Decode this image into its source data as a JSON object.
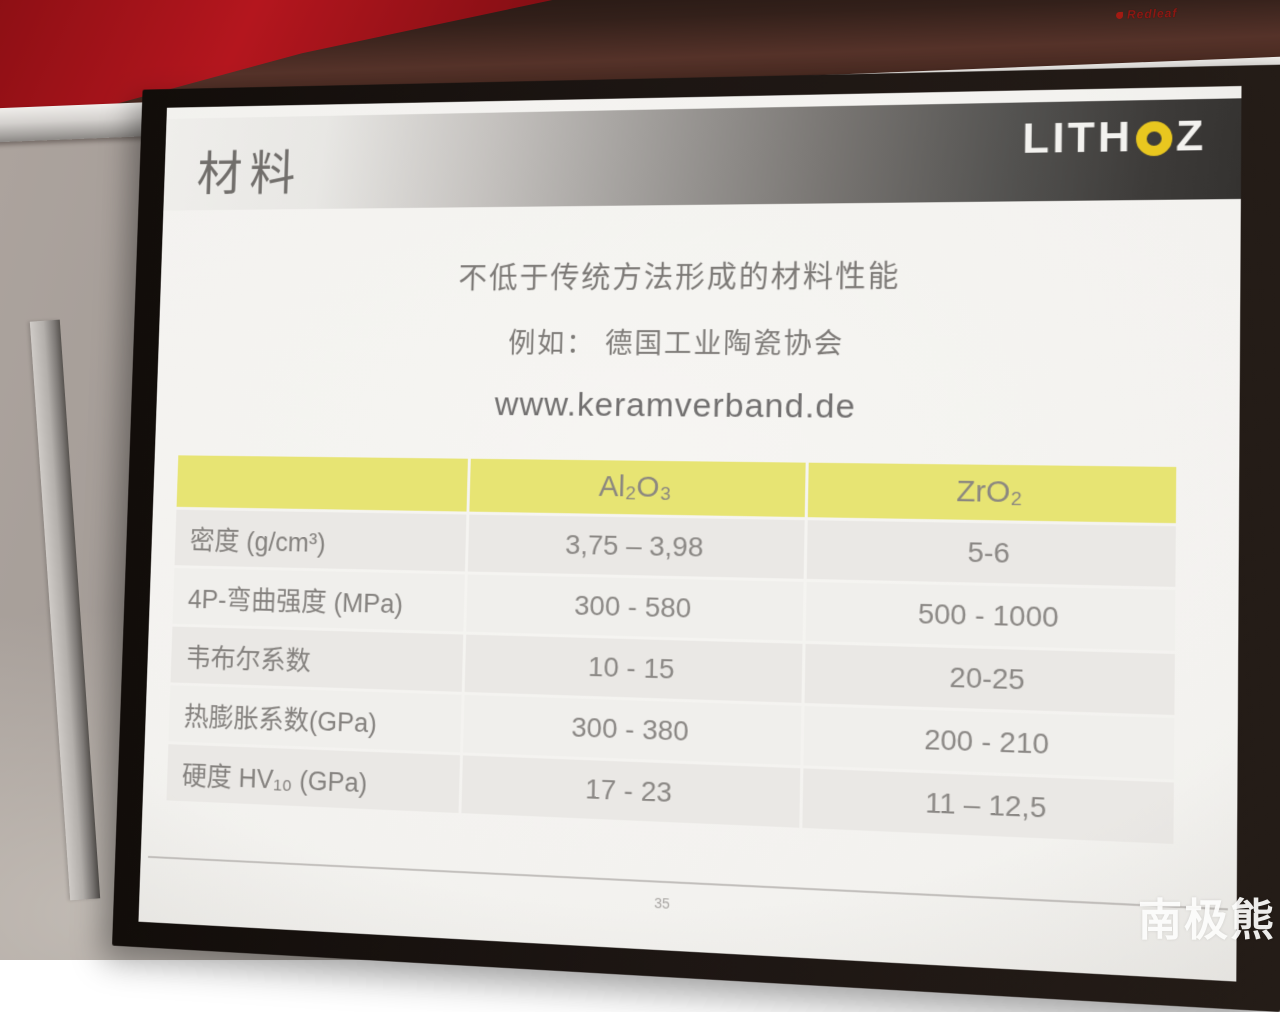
{
  "scene": {
    "projector_brand": "Redleaf",
    "watermark": "南极熊"
  },
  "slide": {
    "brand": {
      "logo_text": "LITHOZ",
      "prefix": "LITH",
      "suffix": "Z"
    },
    "title": "材料",
    "lines": {
      "line1": "不低于传统方法形成的材料性能",
      "line2": "例如： 德国工业陶瓷协会",
      "line3": "www.keramverband.de"
    },
    "table": {
      "headers": [
        "",
        "Al₂O₃",
        "ZrO₂"
      ],
      "rows": [
        {
          "label": "密度 (g/cm³)",
          "al2o3": "3,75 – 3,98",
          "zro2": "5-6"
        },
        {
          "label": "4P-弯曲强度 (MPa)",
          "al2o3": "300 - 580",
          "zro2": "500 - 1000"
        },
        {
          "label": "韦布尔系数",
          "al2o3": "10 - 15",
          "zro2": "20-25"
        },
        {
          "label": "热膨胀系数(GPa)",
          "al2o3": "300 - 380",
          "zro2": "200 - 210"
        },
        {
          "label": "硬度 HV₁₀ (GPa)",
          "al2o3": "17 - 23",
          "zro2": "11 – 12,5"
        }
      ]
    },
    "footer": {
      "page_number": "35"
    },
    "colors": {
      "accent_yellow": "#e7e473",
      "logo_o_yellow": "#e9c71f",
      "header_dark": "#343230",
      "curtain_red": "#a3141b"
    }
  }
}
